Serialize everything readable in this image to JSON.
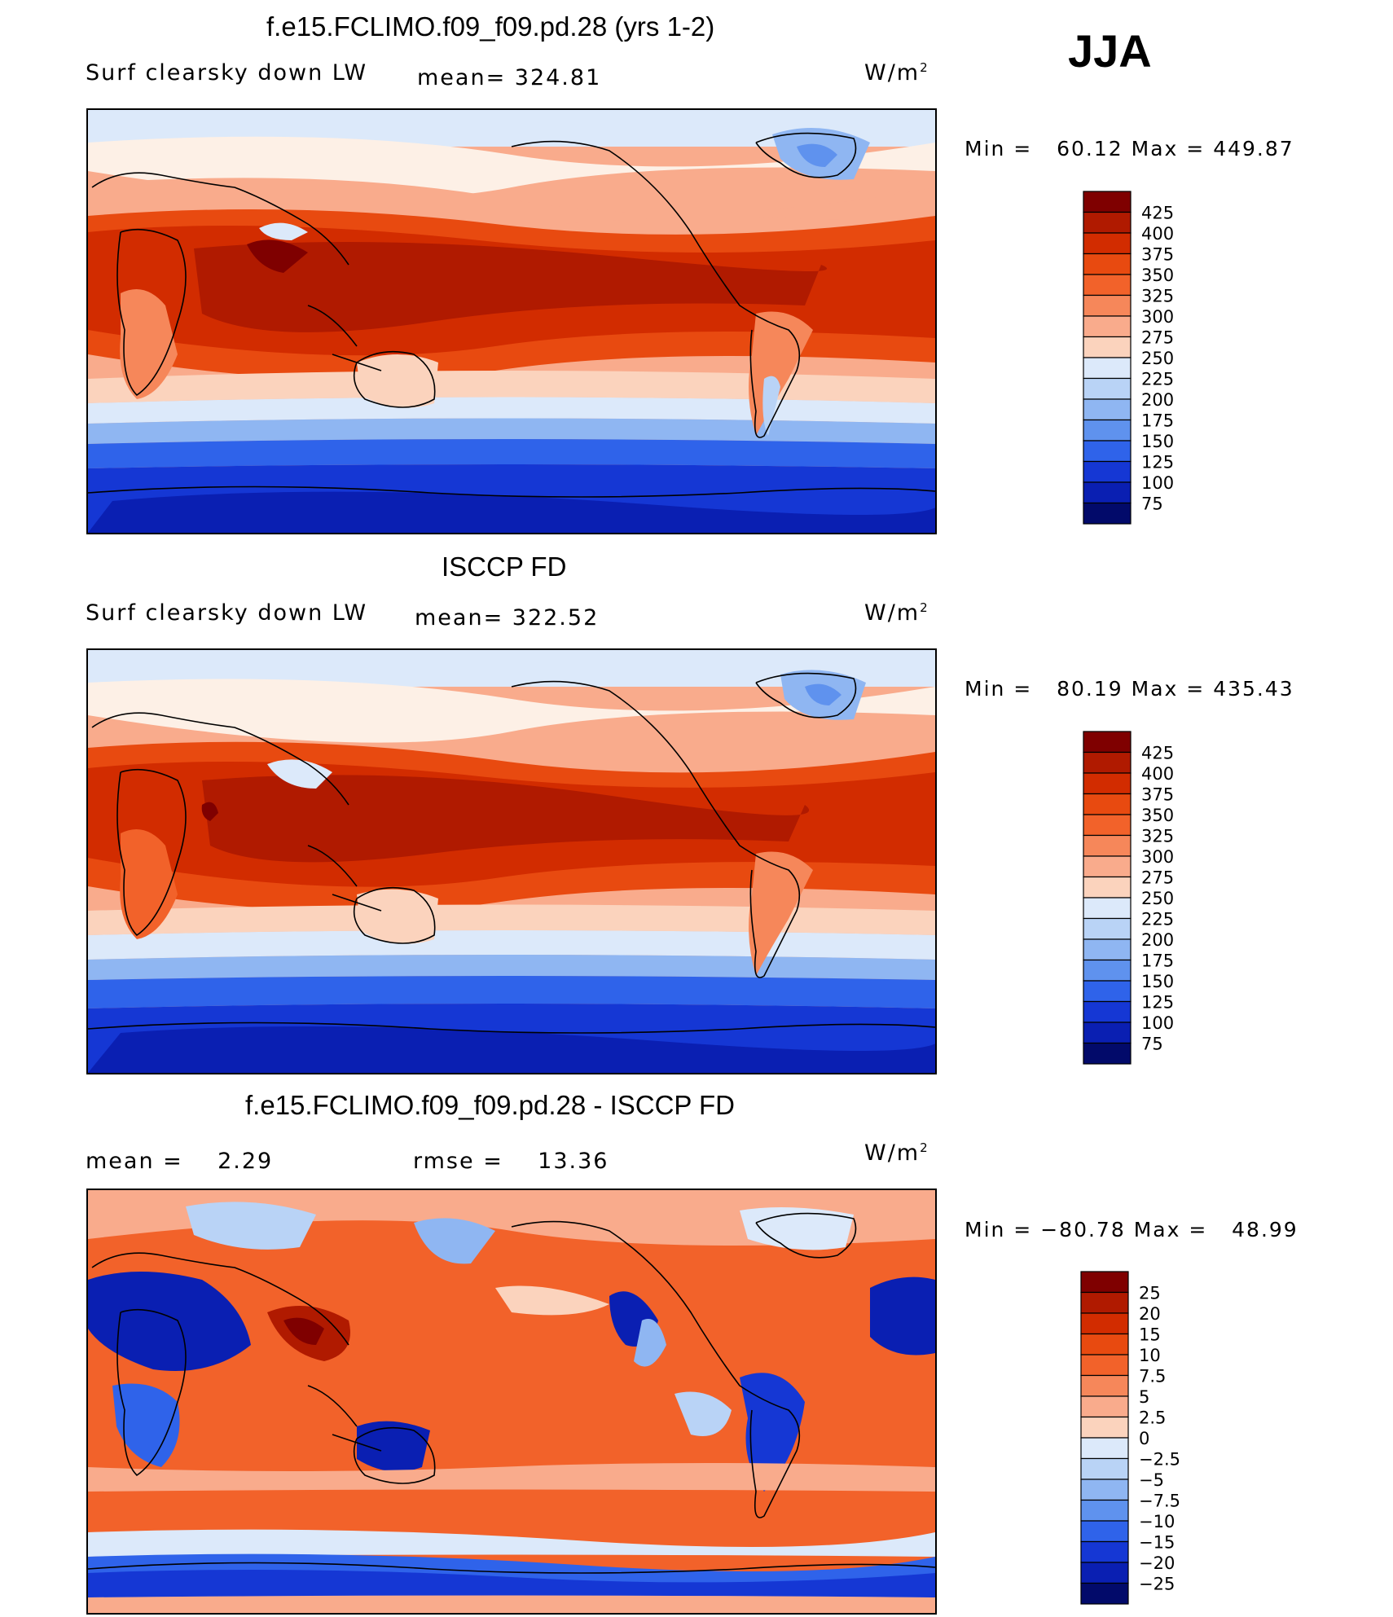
{
  "season": "JJA",
  "panels": [
    {
      "title": "f.e15.FCLIMO.f09_f09.pd.28 (yrs 1-2)",
      "left_label": "Surf clearsky down LW",
      "center_label": "mean= 324.81",
      "units": "W/m",
      "units_sup": "2",
      "min_label": "Min =",
      "min_value": "60.12",
      "max_label": "Max =",
      "max_value": "449.87",
      "levels": [
        "425",
        "400",
        "375",
        "350",
        "325",
        "300",
        "275",
        "250",
        "225",
        "200",
        "175",
        "150",
        "125",
        "100",
        "75"
      ]
    },
    {
      "title": "ISCCP FD",
      "left_label": "Surf clearsky down LW",
      "center_label": "mean= 322.52",
      "units": "W/m",
      "units_sup": "2",
      "min_label": "Min =",
      "min_value": "80.19",
      "max_label": "Max =",
      "max_value": "435.43",
      "levels": [
        "425",
        "400",
        "375",
        "350",
        "325",
        "300",
        "275",
        "250",
        "225",
        "200",
        "175",
        "150",
        "125",
        "100",
        "75"
      ]
    },
    {
      "title": "f.e15.FCLIMO.f09_f09.pd.28 - ISCCP FD",
      "left_label": "mean =    2.29",
      "center_label": "rmse =    13.36",
      "units": "W/m",
      "units_sup": "2",
      "min_label": "Min =",
      "min_value": "−80.78",
      "max_label": "Max =",
      "max_value": "48.99",
      "levels": [
        "25",
        "20",
        "15",
        "10",
        "7.5",
        "5",
        "2.5",
        "0",
        "−2.5",
        "−5",
        "−7.5",
        "−10",
        "−15",
        "−20",
        "−25"
      ]
    }
  ],
  "colors": {
    "scale": [
      "#7f0000",
      "#b01a00",
      "#d22c00",
      "#e84a10",
      "#f2622a",
      "#f6875a",
      "#f9ab8c",
      "#fbd3bd",
      "#fdf0e6",
      "#dce9fa",
      "#b9d3f6",
      "#8fb6f2",
      "#5f92ee",
      "#2f63ea",
      "#1537d4",
      "#0a1fb2",
      "#061490",
      "#020a6a"
    ]
  },
  "chart_data": [
    {
      "type": "heatmap",
      "title": "f.e15.FCLIMO.f09_f09.pd.28 (yrs 1-2)",
      "variable": "Surf clearsky down LW",
      "units": "W/m2",
      "mean": 324.81,
      "min": 60.12,
      "max": 449.87,
      "contour_levels": [
        75,
        100,
        125,
        150,
        175,
        200,
        225,
        250,
        275,
        300,
        325,
        350,
        375,
        400,
        425
      ]
    },
    {
      "type": "heatmap",
      "title": "ISCCP FD",
      "variable": "Surf clearsky down LW",
      "units": "W/m2",
      "mean": 322.52,
      "min": 80.19,
      "max": 435.43,
      "contour_levels": [
        75,
        100,
        125,
        150,
        175,
        200,
        225,
        250,
        275,
        300,
        325,
        350,
        375,
        400,
        425
      ]
    },
    {
      "type": "heatmap",
      "title": "f.e15.FCLIMO.f09_f09.pd.28 - ISCCP FD",
      "units": "W/m2",
      "mean": 2.29,
      "rmse": 13.36,
      "min": -80.78,
      "max": 48.99,
      "contour_levels": [
        -25,
        -20,
        -15,
        -10,
        -7.5,
        -5,
        -2.5,
        0,
        2.5,
        5,
        7.5,
        10,
        15,
        20,
        25
      ]
    }
  ]
}
